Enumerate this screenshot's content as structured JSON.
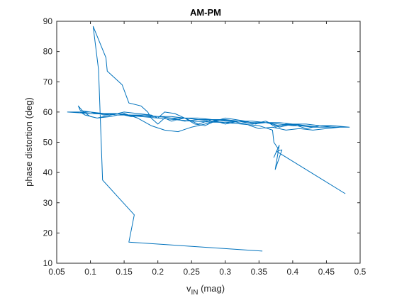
{
  "chart_data": {
    "type": "line",
    "title": "AM-PM",
    "xlabel_main": "v",
    "xlabel_sub": "IN",
    "xlabel_unit": " (mag)",
    "ylabel": "phase distortion (deg)",
    "xlim": [
      0.05,
      0.5
    ],
    "ylim": [
      10,
      90
    ],
    "xticks": [
      "0.05",
      "0.1",
      "0.15",
      "0.2",
      "0.25",
      "0.3",
      "0.35",
      "0.4",
      "0.45",
      "0.5"
    ],
    "yticks": [
      "10",
      "20",
      "30",
      "40",
      "50",
      "60",
      "70",
      "80",
      "90"
    ],
    "grid": false,
    "color": "#0072BD",
    "series": [
      {
        "x": [
          0.355,
          0.157,
          0.165,
          0.118,
          0.112,
          0.104,
          0.123,
          0.125,
          0.147,
          0.157,
          0.175,
          0.185,
          0.19,
          0.2,
          0.21,
          0.22,
          0.24,
          0.26,
          0.28,
          0.3,
          0.32,
          0.34,
          0.36,
          0.38,
          0.4,
          0.42,
          0.44,
          0.465,
          0.484,
          0.46,
          0.44,
          0.42,
          0.4,
          0.38,
          0.36,
          0.34,
          0.32,
          0.3,
          0.28,
          0.26,
          0.24,
          0.22,
          0.2,
          0.18,
          0.16,
          0.14,
          0.12,
          0.1,
          0.085,
          0.082,
          0.09,
          0.1,
          0.11,
          0.13,
          0.15,
          0.17,
          0.19,
          0.2,
          0.21,
          0.225,
          0.24,
          0.255,
          0.27,
          0.285,
          0.3,
          0.315,
          0.33,
          0.345,
          0.36,
          0.375,
          0.39,
          0.41,
          0.43,
          0.45,
          0.465,
          0.44,
          0.42,
          0.4,
          0.38,
          0.36,
          0.34,
          0.32,
          0.3,
          0.28,
          0.26,
          0.24,
          0.22,
          0.2,
          0.18,
          0.16,
          0.14,
          0.12,
          0.1,
          0.085,
          0.092,
          0.11,
          0.13,
          0.15,
          0.17,
          0.19,
          0.21,
          0.23,
          0.25,
          0.27,
          0.29,
          0.31,
          0.33,
          0.35,
          0.37,
          0.39,
          0.41,
          0.43,
          0.45,
          0.47,
          0.48,
          0.46,
          0.44,
          0.42,
          0.4,
          0.38,
          0.36,
          0.34,
          0.32,
          0.3,
          0.28,
          0.26,
          0.24,
          0.22,
          0.2,
          0.18,
          0.16,
          0.14,
          0.12,
          0.1,
          0.08,
          0.066,
          0.1,
          0.15,
          0.2,
          0.25,
          0.3,
          0.35,
          0.37,
          0.372,
          0.378,
          0.372,
          0.38,
          0.374,
          0.384,
          0.376,
          0.478
        ],
        "y": [
          14,
          17,
          26,
          37.5,
          74,
          88.3,
          78,
          73.5,
          69,
          63,
          62,
          60,
          58,
          56,
          58,
          57,
          58,
          56,
          57.5,
          56,
          57,
          56,
          57,
          55,
          56,
          54.5,
          55.5,
          55,
          55,
          55.5,
          55,
          55.5,
          56,
          55.5,
          56.5,
          56,
          57,
          56.5,
          57,
          57.5,
          57,
          58,
          58.5,
          59,
          58.5,
          59.5,
          59,
          60,
          60.5,
          62,
          60,
          58.5,
          58,
          59,
          60,
          59.5,
          59,
          58,
          60,
          59.5,
          58,
          56,
          55.5,
          57,
          58,
          57.5,
          57,
          56,
          57,
          55,
          56,
          55.5,
          55,
          55,
          55,
          55,
          55.5,
          55.5,
          56,
          56.5,
          56.5,
          57,
          57,
          57.5,
          57.5,
          58,
          58,
          58.5,
          58.5,
          59,
          59,
          59.5,
          59.5,
          60,
          59,
          58,
          58.5,
          59.5,
          58,
          55.5,
          54,
          53.5,
          55,
          56,
          57.5,
          57,
          56,
          54.5,
          55,
          54,
          54.5,
          54,
          54.5,
          55,
          55,
          55.5,
          55.5,
          56,
          56,
          56.5,
          56.5,
          57,
          57,
          57.5,
          57.5,
          58,
          58,
          58.5,
          58.5,
          59,
          59,
          59.5,
          59.5,
          60,
          60,
          60,
          59.5,
          59,
          58,
          57,
          56.5,
          55.5,
          54,
          50,
          48,
          45,
          49,
          41,
          47.5,
          47,
          33
        ]
      }
    ]
  }
}
